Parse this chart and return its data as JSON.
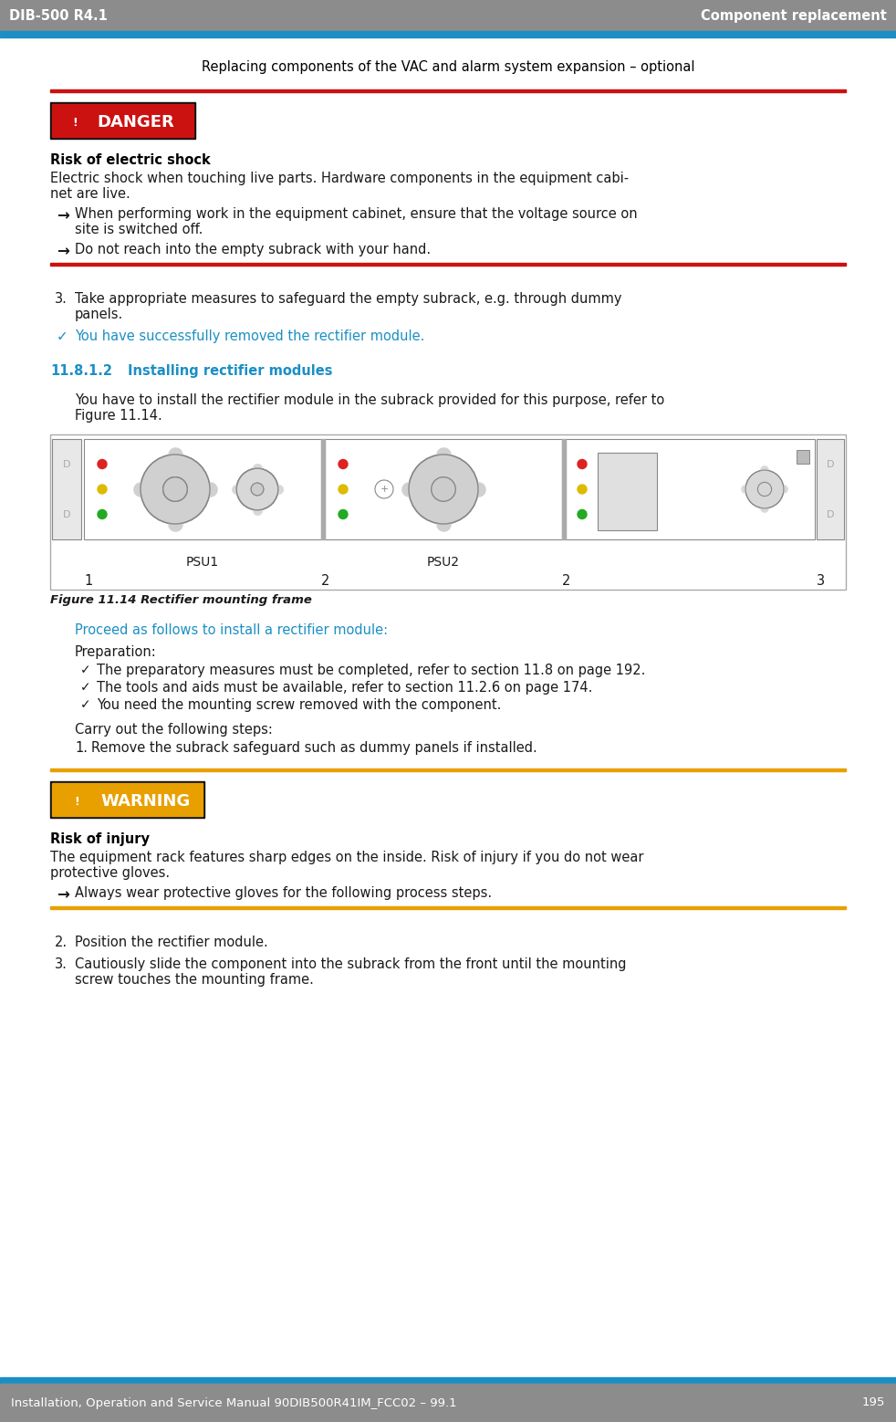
{
  "header_bg": "#8c8c8c",
  "header_text_left": "DIB-500 R4.1",
  "header_text_right": "Component replacement",
  "header_text_color": "#ffffff",
  "subheader_text": "Replacing components of the VAC and alarm system expansion – optional",
  "subheader_text_color": "#000000",
  "blue_bar_color": "#1b8fc4",
  "red_bar_color": "#cc1111",
  "orange_bar_color": "#e8a000",
  "danger_bg": "#cc1111",
  "danger_text": "DANGER",
  "warning_bg": "#e8a000",
  "warning_text": "WARNING",
  "section_color": "#1b8fc4",
  "check_color": "#1b8fc4",
  "footer_bg": "#8c8c8c",
  "footer_text": "Installation, Operation and Service Manual 90DIB500R41IM_FCC02 – 99.1",
  "footer_page": "195",
  "body_text_color": "#1a1a1a",
  "bold_text_color": "#000000",
  "fig_border_color": "#aaaaaa",
  "fig_bg": "#f5f5f5"
}
